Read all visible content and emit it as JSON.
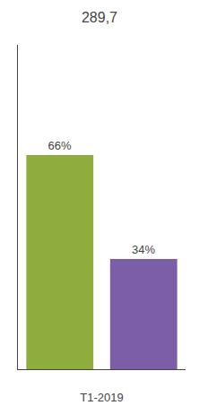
{
  "chart_data": {
    "type": "bar",
    "title": "289,7",
    "xlabel": "T1-2019",
    "categories": [
      null,
      null
    ],
    "values": [
      66,
      34
    ],
    "value_labels": [
      "66%",
      "34%"
    ],
    "colors": [
      "#8fad3f",
      "#7b5ea7"
    ],
    "ylim": [
      0,
      100
    ],
    "data_labels": true,
    "tick_labels": false,
    "grid": false
  }
}
